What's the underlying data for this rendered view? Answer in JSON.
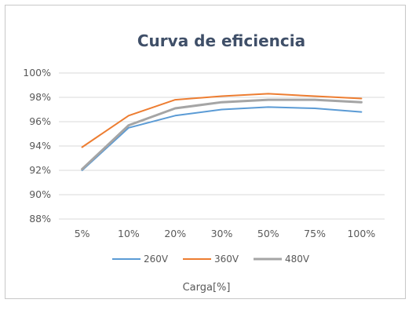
{
  "chart_data": {
    "type": "line",
    "title": "Curva de eficiencia",
    "xlabel": "Carga[%]",
    "ylabel": "",
    "categories": [
      "5%",
      "10%",
      "20%",
      "30%",
      "50%",
      "75%",
      "100%"
    ],
    "ylim": [
      88,
      100
    ],
    "yticks": [
      88,
      90,
      92,
      94,
      96,
      98,
      100
    ],
    "ytick_labels": [
      "88%",
      "90%",
      "92%",
      "94%",
      "96%",
      "98%",
      "100%"
    ],
    "grid": true,
    "legend_position": "bottom",
    "series": [
      {
        "name": "260V",
        "color": "#5b9bd5",
        "values": [
          92.0,
          95.5,
          96.5,
          97.0,
          97.2,
          97.1,
          96.8
        ]
      },
      {
        "name": "360V",
        "color": "#ed7d31",
        "values": [
          93.9,
          96.5,
          97.8,
          98.1,
          98.3,
          98.1,
          97.9
        ]
      },
      {
        "name": "480V",
        "color": "#a5a5a5",
        "values": [
          92.1,
          95.7,
          97.1,
          97.6,
          97.8,
          97.8,
          97.6
        ]
      }
    ]
  }
}
